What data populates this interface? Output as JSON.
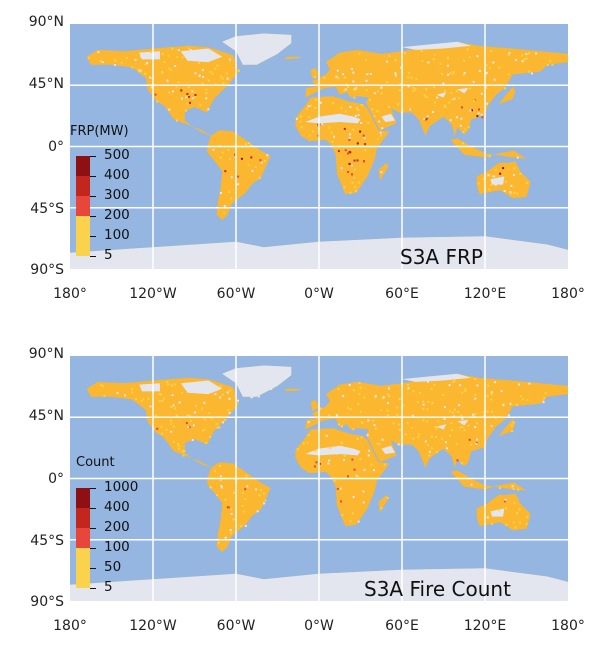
{
  "lat_ticks": [
    "90°N",
    "45°N",
    "0°",
    "45°S",
    "90°S"
  ],
  "lon_ticks": [
    "180°",
    "120°W",
    "60°W",
    "0°W",
    "60°E",
    "120°E",
    "180°"
  ],
  "colors": {
    "ocean": "#94b6e0",
    "land_bare": "#e4e6ef",
    "grid": "#ffffff",
    "low": "#fbd24b",
    "mid": "#fbb72f",
    "high": "#e8463a",
    "very_high": "#c2261c",
    "extreme": "#8e1012"
  },
  "panels": [
    {
      "title": "S3A FRP",
      "legend_title": "FRP(MW)",
      "legend_labels": [
        "500",
        "400",
        "300",
        "200",
        "100",
        "5"
      ],
      "legend_colors": [
        "#8e1012",
        "#c2261c",
        "#e8463a",
        "#fbd24b",
        "#fbd24b"
      ]
    },
    {
      "title": "S3A Fire Count",
      "legend_title": "Count",
      "legend_labels": [
        "1000",
        "400",
        "200",
        "100",
        "50",
        "5"
      ],
      "legend_colors": [
        "#8e1012",
        "#c2261c",
        "#e8463a",
        "#fbd24b",
        "#fbd24b"
      ]
    }
  ]
}
